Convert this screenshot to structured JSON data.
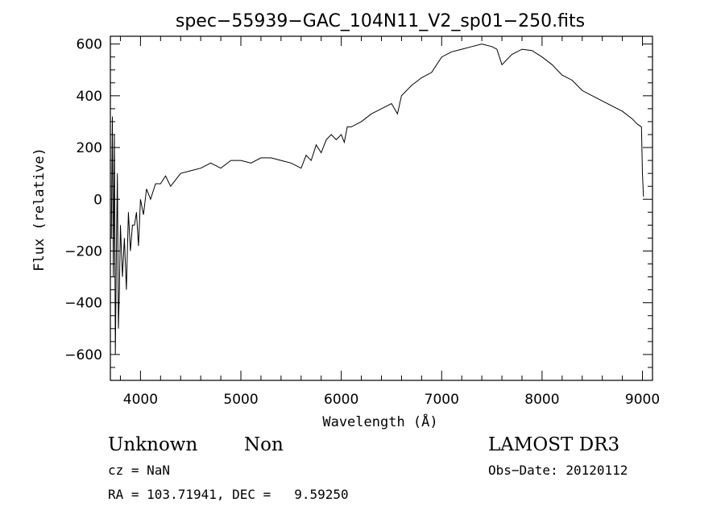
{
  "chart_data": {
    "type": "line",
    "title": "spec−55939−GAC_104N11_V2_sp01−250.fits",
    "xlabel": "Wavelength (Å)",
    "ylabel": "Flux (relative)",
    "xlim": [
      3700,
      9100
    ],
    "ylim": [
      -700,
      630
    ],
    "x_ticks": [
      4000,
      5000,
      6000,
      7000,
      8000,
      9000
    ],
    "x_tick_labels": [
      "4000",
      "5000",
      "6000",
      "7000",
      "8000",
      "9000"
    ],
    "y_ticks": [
      -600,
      -400,
      -200,
      0,
      200,
      400,
      600
    ],
    "y_tick_labels": [
      "−600",
      "−400",
      "−200",
      "0",
      "200",
      "400",
      "600"
    ],
    "series": [
      {
        "name": "spectrum",
        "x": [
          3710,
          3720,
          3730,
          3740,
          3750,
          3760,
          3770,
          3780,
          3790,
          3800,
          3820,
          3840,
          3860,
          3880,
          3900,
          3920,
          3940,
          3960,
          3980,
          4000,
          4030,
          4060,
          4100,
          4150,
          4200,
          4250,
          4300,
          4400,
          4500,
          4600,
          4700,
          4800,
          4900,
          5000,
          5100,
          5200,
          5300,
          5400,
          5500,
          5600,
          5650,
          5700,
          5750,
          5800,
          5850,
          5900,
          5950,
          6000,
          6030,
          6060,
          6100,
          6200,
          6300,
          6400,
          6500,
          6560,
          6600,
          6700,
          6800,
          6900,
          7000,
          7100,
          7200,
          7300,
          7400,
          7500,
          7550,
          7600,
          7650,
          7700,
          7800,
          7900,
          8000,
          8100,
          8200,
          8300,
          8400,
          8500,
          8600,
          8700,
          8800,
          8900,
          8950,
          8990,
          9000,
          9010
        ],
        "values": [
          -150,
          320,
          -300,
          250,
          -600,
          -200,
          100,
          -500,
          -350,
          -100,
          -300,
          -150,
          -350,
          -50,
          -200,
          -100,
          -100,
          -50,
          -180,
          0,
          -60,
          40,
          0,
          60,
          60,
          90,
          50,
          100,
          110,
          120,
          140,
          120,
          150,
          150,
          140,
          160,
          160,
          150,
          140,
          120,
          170,
          150,
          210,
          180,
          230,
          250,
          230,
          250,
          220,
          280,
          280,
          300,
          330,
          350,
          370,
          330,
          400,
          440,
          470,
          490,
          550,
          570,
          580,
          590,
          600,
          590,
          580,
          520,
          540,
          560,
          580,
          575,
          550,
          520,
          480,
          460,
          420,
          400,
          380,
          360,
          340,
          310,
          290,
          280,
          100,
          10
        ]
      }
    ]
  },
  "footer": {
    "object_type": "Unknown",
    "object_class": "Non",
    "cz": "cz = NaN",
    "coords": "RA = 103.71941, DEC =   9.59250",
    "survey": "LAMOST DR3",
    "obs_date": "Obs−Date: 20120112"
  }
}
